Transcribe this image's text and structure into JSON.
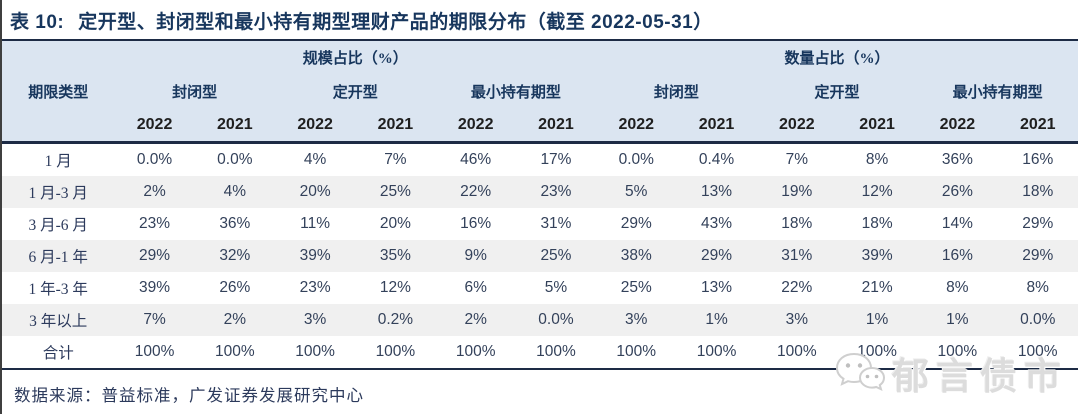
{
  "title": {
    "prefix": "表 10:",
    "text": "定开型、封闭型和最小持有期型理财产品的期限分布（截至 2022-05-31）"
  },
  "table": {
    "row_header_label": "期限类型",
    "group_headers": [
      "规模占比（%）",
      "数量占比（%）"
    ],
    "type_headers": [
      "封闭型",
      "定开型",
      "最小持有期型",
      "封闭型",
      "定开型",
      "最小持有期型"
    ],
    "year_headers": [
      "2022",
      "2021",
      "2022",
      "2021",
      "2022",
      "2021",
      "2022",
      "2021",
      "2022",
      "2021",
      "2022",
      "2021"
    ],
    "rows": [
      {
        "label": "1 月",
        "values": [
          "0.0%",
          "0.0%",
          "4%",
          "7%",
          "46%",
          "17%",
          "0.0%",
          "0.4%",
          "7%",
          "8%",
          "36%",
          "16%"
        ]
      },
      {
        "label": "1 月-3 月",
        "values": [
          "2%",
          "4%",
          "20%",
          "25%",
          "22%",
          "23%",
          "5%",
          "13%",
          "19%",
          "12%",
          "26%",
          "18%"
        ]
      },
      {
        "label": "3 月-6 月",
        "values": [
          "23%",
          "36%",
          "11%",
          "20%",
          "16%",
          "31%",
          "29%",
          "43%",
          "18%",
          "18%",
          "14%",
          "29%"
        ]
      },
      {
        "label": "6 月-1 年",
        "values": [
          "29%",
          "32%",
          "39%",
          "35%",
          "9%",
          "25%",
          "38%",
          "29%",
          "31%",
          "39%",
          "16%",
          "29%"
        ]
      },
      {
        "label": "1 年-3 年",
        "values": [
          "39%",
          "26%",
          "23%",
          "12%",
          "6%",
          "5%",
          "25%",
          "13%",
          "22%",
          "21%",
          "8%",
          "8%"
        ]
      },
      {
        "label": "3 年以上",
        "values": [
          "7%",
          "2%",
          "3%",
          "0.2%",
          "2%",
          "0.0%",
          "3%",
          "1%",
          "3%",
          "1%",
          "1%",
          "0.0%"
        ]
      },
      {
        "label": "合计",
        "values": [
          "100%",
          "100%",
          "100%",
          "100%",
          "100%",
          "100%",
          "100%",
          "100%",
          "100%",
          "100%",
          "100%",
          "100%"
        ]
      }
    ]
  },
  "footer": {
    "source": "数据来源：普益标准，广发证券发展研究中心"
  },
  "watermark": {
    "text": "郁言债市",
    "icon": "wechat-icon"
  },
  "colors": {
    "header_bg": "#dbe5f1",
    "stripe_bg": "#f0f0f0",
    "title_text": "#17365d",
    "body_text": "#33415a",
    "border_dark": "#1d2b45",
    "watermark_gray": "#dcdcdc"
  }
}
